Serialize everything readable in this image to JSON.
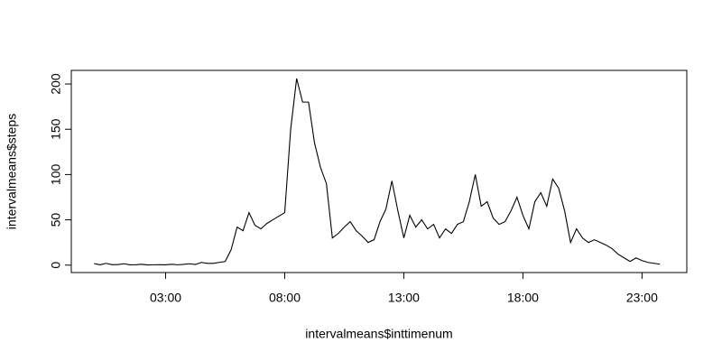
{
  "chart_data": {
    "type": "line",
    "x_label": "intervalmeans$inttimenum",
    "y_label": "intervalmeans$steps",
    "x": [
      0,
      0.25,
      0.5,
      0.75,
      1,
      1.25,
      1.5,
      1.75,
      2,
      2.25,
      2.5,
      2.75,
      3,
      3.25,
      3.5,
      3.75,
      4,
      4.25,
      4.5,
      4.75,
      5,
      5.25,
      5.5,
      5.75,
      6,
      6.25,
      6.5,
      6.75,
      7,
      7.25,
      7.5,
      7.75,
      8,
      8.25,
      8.5,
      8.75,
      9,
      9.25,
      9.5,
      9.75,
      10,
      10.25,
      10.5,
      10.75,
      11,
      11.25,
      11.5,
      11.75,
      12,
      12.25,
      12.5,
      12.75,
      13,
      13.25,
      13.5,
      13.75,
      14,
      14.25,
      14.5,
      14.75,
      15,
      15.25,
      15.5,
      15.75,
      16,
      16.25,
      16.5,
      16.75,
      17,
      17.25,
      17.5,
      17.75,
      18,
      18.25,
      18.5,
      18.75,
      19,
      19.25,
      19.5,
      19.75,
      20,
      20.25,
      20.5,
      20.75,
      21,
      21.25,
      21.5,
      21.75,
      22,
      22.25,
      22.5,
      22.75,
      23,
      23.25,
      23.5,
      23.75
    ],
    "series": [
      {
        "color": "#000000",
        "values": [
          1.7,
          0.3,
          2,
          0.5,
          0.6,
          1.5,
          0.3,
          0.5,
          1,
          0.2,
          0.4,
          0.5,
          0.3,
          1,
          0.4,
          0.8,
          1.5,
          0.7,
          3,
          2,
          2,
          3,
          4,
          17,
          42,
          38,
          58,
          44,
          40,
          46,
          50,
          54,
          58,
          150,
          206,
          180,
          180,
          135,
          108,
          90,
          30,
          35,
          42,
          48,
          38,
          32,
          25,
          28,
          48,
          62,
          93,
          60,
          30,
          55,
          42,
          50,
          40,
          45,
          30,
          40,
          35,
          45,
          48,
          70,
          100,
          65,
          70,
          52,
          45,
          48,
          60,
          75,
          55,
          40,
          70,
          80,
          65,
          95,
          85,
          60,
          25,
          40,
          30,
          25,
          28,
          25,
          22,
          18,
          12,
          8,
          4,
          8,
          5,
          3,
          2,
          1
        ]
      }
    ],
    "xlim": [
      -0.96,
      24.88
    ],
    "ylim": [
      -8.2,
      215
    ],
    "xticks": [
      {
        "value": 3,
        "label": "03:00"
      },
      {
        "value": 8,
        "label": "08:00"
      },
      {
        "value": 13,
        "label": "13:00"
      },
      {
        "value": 18,
        "label": "18:00"
      },
      {
        "value": 23,
        "label": "23:00"
      }
    ],
    "yticks": [
      0,
      50,
      100,
      150,
      200
    ]
  }
}
